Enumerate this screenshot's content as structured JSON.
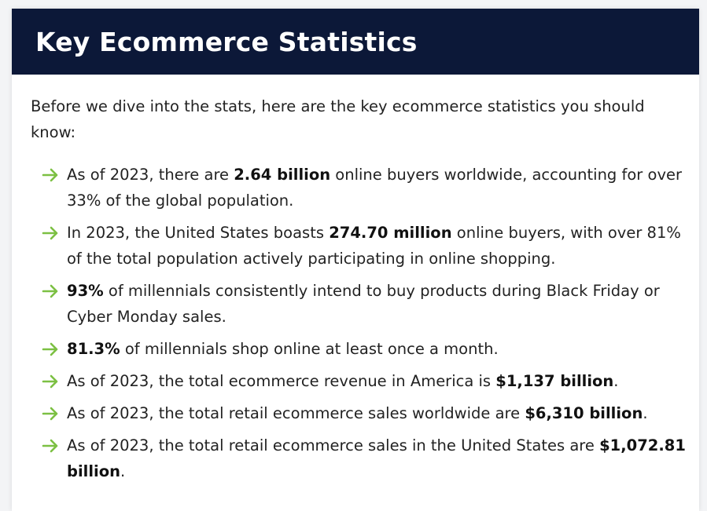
{
  "header": {
    "title": "Key Ecommerce Statistics"
  },
  "intro": "Before we dive into the stats, here are the key ecommerce statistics you should know:",
  "accent_color": "#7cc043",
  "bullet_icon": "arrow-right-icon",
  "items": [
    {
      "pre": "As of 2023, there are ",
      "bold": "2.64 billion",
      "post": " online buyers worldwide, accounting for over 33% of the global population."
    },
    {
      "pre": "In 2023, the United States boasts ",
      "bold": "274.70 million",
      "post": " online buyers, with over 81% of the total population actively participating in online shopping."
    },
    {
      "pre": "",
      "bold": "93%",
      "post": " of millennials consistently intend to buy products during Black Friday or Cyber Monday sales."
    },
    {
      "pre": "",
      "bold": "81.3%",
      "post": " of millennials shop online at least once a month."
    },
    {
      "pre": "As of 2023, the total ecommerce revenue in America is ",
      "bold": "$1,137 billion",
      "post": "."
    },
    {
      "pre": "As of 2023, the total retail ecommerce sales worldwide are ",
      "bold": "$6,310 billion",
      "post": "."
    },
    {
      "pre": "As of 2023, the total retail ecommerce sales in the United States are ",
      "bold": "$1,072.81 billion",
      "post": "."
    }
  ]
}
